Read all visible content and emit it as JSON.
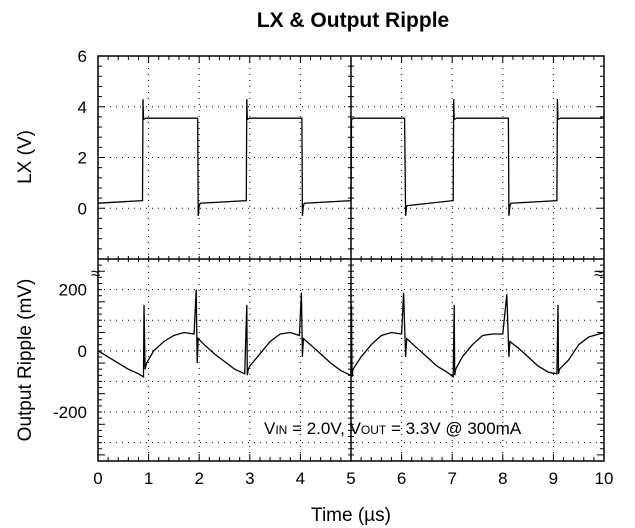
{
  "chart_data": {
    "type": "line",
    "title": "LX & Output Ripple",
    "xlabel": "Time (µs)",
    "x_ticks": [
      "0",
      "1",
      "2",
      "3",
      "4",
      "5",
      "6",
      "7",
      "8",
      "9",
      "10"
    ],
    "xlim": [
      0,
      10
    ],
    "grid": true,
    "break_symbol": "≈",
    "annotation": {
      "vin_prefix": "V",
      "vin_sub": "IN",
      "vin_value": " = 2.0V, ",
      "vout_prefix": "V",
      "vout_sub": "OUT",
      "vout_value": " = 3.3V  @  300mA"
    },
    "panels": [
      {
        "name": "LX",
        "ylabel": "LX (V)",
        "y_ticks": [
          "6",
          "4",
          "2",
          "0"
        ],
        "ylim": [
          -2,
          6
        ],
        "series": {
          "x": [
            0,
            0.88,
            0.89,
            0.9,
            0.95,
            1.97,
            1.98,
            2.0,
            2.02,
            2.93,
            2.94,
            2.95,
            3.0,
            4.03,
            4.04,
            4.06,
            4.08,
            5.0,
            5.01,
            5.06,
            6.06,
            6.08,
            6.1,
            7.02,
            7.03,
            7.04,
            7.09,
            8.11,
            8.12,
            8.14,
            8.16,
            9.07,
            9.08,
            9.09,
            9.14,
            10.0
          ],
          "y": [
            0.2,
            0.3,
            4.3,
            3.5,
            3.55,
            3.55,
            -0.3,
            0.1,
            0.2,
            0.3,
            4.3,
            3.5,
            3.55,
            3.55,
            -0.3,
            0.1,
            0.2,
            0.3,
            3.5,
            3.55,
            3.55,
            -0.3,
            0.1,
            0.3,
            4.3,
            3.5,
            3.55,
            3.55,
            -0.3,
            0.1,
            0.2,
            0.3,
            4.3,
            3.5,
            3.55,
            3.55
          ]
        }
      },
      {
        "name": "Output Ripple",
        "ylabel": "Output Ripple (mV)",
        "y_ticks": [
          "200",
          "0",
          "-200"
        ],
        "ylim": [
          -360,
          300
        ],
        "series": {
          "x": [
            0,
            0.2,
            0.4,
            0.6,
            0.8,
            0.9,
            0.91,
            0.93,
            0.96,
            1.1,
            1.3,
            1.5,
            1.7,
            1.9,
            1.94,
            1.96,
            1.98,
            2.1,
            2.3,
            2.5,
            2.7,
            2.9,
            2.94,
            2.95,
            2.97,
            3.0,
            3.2,
            3.4,
            3.6,
            3.8,
            3.98,
            4.02,
            4.04,
            4.06,
            4.2,
            4.4,
            4.6,
            4.8,
            5.0,
            5.01,
            5.02,
            5.04,
            5.2,
            5.4,
            5.6,
            5.8,
            6.0,
            6.04,
            6.08,
            6.1,
            6.3,
            6.5,
            6.7,
            6.9,
            7.02,
            7.04,
            7.05,
            7.07,
            7.2,
            7.4,
            7.6,
            7.8,
            8.0,
            8.08,
            8.12,
            8.14,
            8.3,
            8.5,
            8.7,
            8.9,
            9.07,
            9.09,
            9.1,
            9.12,
            9.3,
            9.5,
            9.7,
            10.0
          ],
          "y": [
            0,
            -20,
            -40,
            -60,
            -75,
            -85,
            150,
            -60,
            -40,
            0,
            30,
            50,
            60,
            55,
            200,
            -40,
            40,
            20,
            -10,
            -35,
            -60,
            -75,
            150,
            -80,
            -60,
            -50,
            -10,
            30,
            55,
            60,
            50,
            190,
            -20,
            40,
            20,
            -10,
            -40,
            -65,
            -80,
            150,
            -85,
            -60,
            -20,
            20,
            50,
            60,
            55,
            190,
            -20,
            40,
            10,
            -20,
            -50,
            -70,
            -85,
            150,
            -80,
            -60,
            -20,
            20,
            50,
            55,
            55,
            185,
            -20,
            30,
            10,
            -20,
            -50,
            -70,
            -75,
            150,
            -75,
            -60,
            -30,
            20,
            45,
            60
          ]
        }
      }
    ]
  }
}
